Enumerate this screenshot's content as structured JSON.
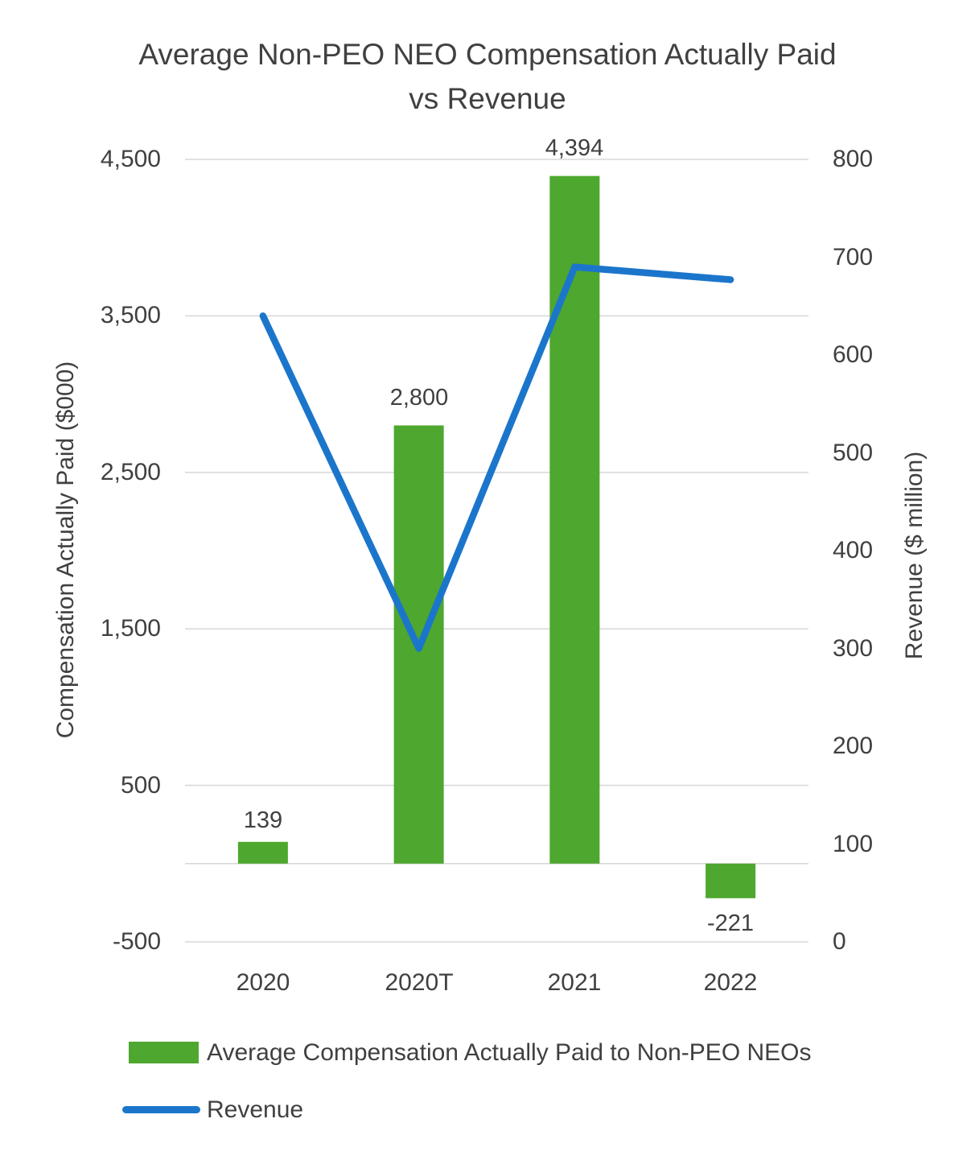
{
  "chart_data": {
    "type": "combo_bar_line",
    "title": "Average Non-PEO NEO Compensation Actually Paid\nvs Revenue",
    "categories": [
      "2020",
      "2020T",
      "2021",
      "2022"
    ],
    "series": [
      {
        "name": "Average Compensation Actually Paid to Non-PEO NEOs",
        "type": "bar",
        "axis": "left",
        "values": [
          139,
          2800,
          4394,
          -221
        ],
        "labels": [
          "139",
          "2,800",
          "4,394",
          "-221"
        ],
        "color": "#4ea72e"
      },
      {
        "name": "Revenue",
        "type": "line",
        "axis": "right",
        "values": [
          640,
          300,
          690,
          677
        ],
        "color": "#1b76cb"
      }
    ],
    "left_axis": {
      "title": "Compensation Actually Paid ($000)",
      "min": -500,
      "max": 4500,
      "tick_values": [
        4500,
        3500,
        2500,
        1500,
        500,
        -500
      ],
      "tick_labels": [
        "4,500",
        "3,500",
        "2,500",
        "1,500",
        "500",
        "-500"
      ]
    },
    "right_axis": {
      "title": "Revenue ($ million)",
      "min": 0,
      "max": 800,
      "tick_values": [
        800,
        700,
        600,
        500,
        400,
        300,
        200,
        100,
        0
      ],
      "tick_labels": [
        "800",
        "700",
        "600",
        "500",
        "400",
        "300",
        "200",
        "100",
        "0"
      ]
    },
    "grid": true,
    "legend_position": "bottom-left",
    "colors": {
      "gridline": "#d9d9d9",
      "text": "#404040"
    }
  }
}
